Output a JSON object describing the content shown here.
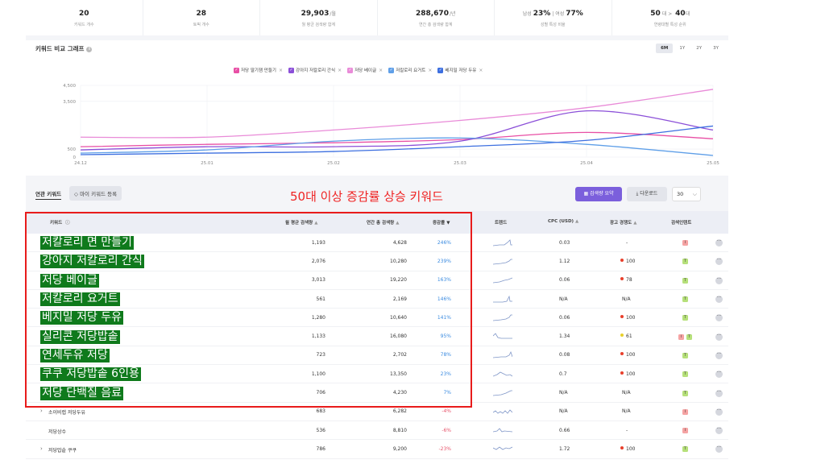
{
  "stats": [
    {
      "value": "20",
      "unit": "",
      "label": "키워드 개수"
    },
    {
      "value": "28",
      "unit": "",
      "label": "토픽 개수"
    },
    {
      "value": "29,903",
      "unit": "/월",
      "label": "월 평균 검색량 합계"
    },
    {
      "value": "288,670",
      "unit": "/년",
      "label": "연간 총 검색량 합계"
    },
    {
      "value_html": {
        "pre": "남성",
        "a": "23%",
        "mid": "| 여성",
        "b": "77%"
      },
      "label": "성별 특성 비율"
    },
    {
      "value_html": {
        "pre": "",
        "a": "50",
        "mid": "대 > ",
        "b": "40",
        "post": "대"
      },
      "label": "연령대별 특성 순위"
    }
  ],
  "chart": {
    "title": "키워드 비교 그래프",
    "periods": [
      "6M",
      "1Y",
      "2Y",
      "3Y"
    ],
    "active_period": "6M",
    "legend": [
      {
        "label": "저당 딸기잼 만들기",
        "color": "#e84fa5"
      },
      {
        "label": "강아지 저칼로리 간식",
        "color": "#8b4fd8"
      },
      {
        "label": "저당 베이글",
        "color": "#e98bd8"
      },
      {
        "label": "저칼로리 요거트",
        "color": "#5f9fe8"
      },
      {
        "label": "베지밀 저당 두유",
        "color": "#3d6fe0"
      }
    ],
    "y_ticks": [
      "4,500",
      "3,500",
      "500",
      "0"
    ],
    "x_ticks": [
      "24.12",
      "25.01",
      "25.02",
      "25.03",
      "25.04",
      "25.05"
    ]
  },
  "chart_data": {
    "type": "line",
    "x": [
      "24.12",
      "25.01",
      "25.02",
      "25.03",
      "25.04",
      "25.05"
    ],
    "ylim": [
      0,
      4500
    ],
    "series": [
      {
        "name": "저당 딸기잼 만들기",
        "color": "#e84fa5",
        "values": [
          650,
          800,
          900,
          1100,
          1550,
          1150
        ]
      },
      {
        "name": "강아지 저칼로리 간식",
        "color": "#8b4fd8",
        "values": [
          450,
          650,
          650,
          1000,
          2900,
          1700
        ]
      },
      {
        "name": "저당 베이글",
        "color": "#e98bd8",
        "values": [
          1250,
          1250,
          1700,
          2300,
          3100,
          4250
        ]
      },
      {
        "name": "저칼로리 요거트",
        "color": "#5f9fe8",
        "values": [
          250,
          450,
          1000,
          1200,
          800,
          100
        ]
      },
      {
        "name": "베지밀 저당 두유",
        "color": "#3d6fe0",
        "values": [
          150,
          250,
          350,
          650,
          1050,
          1950
        ]
      }
    ]
  },
  "toolbar": {
    "tab_label": "연관 키워드",
    "my_keywords": "◇ 마이 키워드 등록",
    "overlay_title": "50대 이상 증감률 상승 키워드",
    "summary": "검색량 요약",
    "download": "다운로드",
    "rows": "30"
  },
  "table": {
    "headers": {
      "keyword": "키워드",
      "monthly": "월 평균 검색량",
      "yearly": "연간 총 검색량",
      "growth": "증감률",
      "trend": "트렌드",
      "cpc": "CPC (USD)",
      "competition": "광고 경쟁도",
      "intent": "검색인텐트"
    },
    "rows": [
      {
        "keyword": "저칼로리 면 만들기",
        "big": true,
        "monthly": "1,193",
        "yearly": "4,628",
        "growth": "246%",
        "dir": "up",
        "cpc": "0.03",
        "comp": "-",
        "comp_dot": "",
        "intent": [
          {
            "t": "I",
            "c": "#f5a3a3"
          }
        ]
      },
      {
        "keyword": "강아지 저칼로리 간식",
        "big": true,
        "monthly": "2,076",
        "yearly": "10,280",
        "growth": "239%",
        "dir": "up",
        "cpc": "1.12",
        "comp": "100",
        "comp_dot": "#e8402c",
        "intent": [
          {
            "t": "T",
            "c": "#b6e07a"
          }
        ]
      },
      {
        "keyword": "저당 베이글",
        "big": true,
        "monthly": "3,013",
        "yearly": "19,220",
        "growth": "163%",
        "dir": "up",
        "cpc": "0.06",
        "comp": "78",
        "comp_dot": "#e8402c",
        "intent": [
          {
            "t": "T",
            "c": "#b6e07a"
          }
        ]
      },
      {
        "keyword": "저칼로리 요거트",
        "big": true,
        "monthly": "561",
        "yearly": "2,169",
        "growth": "146%",
        "dir": "up",
        "cpc": "N/A",
        "comp": "N/A",
        "comp_dot": "",
        "intent": [
          {
            "t": "T",
            "c": "#b6e07a"
          }
        ]
      },
      {
        "keyword": "베지밀 저당 두유",
        "big": true,
        "monthly": "1,280",
        "yearly": "10,640",
        "growth": "141%",
        "dir": "up",
        "cpc": "0.06",
        "comp": "100",
        "comp_dot": "#e8402c",
        "intent": [
          {
            "t": "T",
            "c": "#b6e07a"
          }
        ]
      },
      {
        "keyword": "실리콘 저당밥솥",
        "big": true,
        "monthly": "1,133",
        "yearly": "16,080",
        "growth": "95%",
        "dir": "up",
        "cpc": "1.34",
        "comp": "61",
        "comp_dot": "#e8d02c",
        "intent": [
          {
            "t": "I",
            "c": "#f5a3a3"
          },
          {
            "t": "T",
            "c": "#b6e07a"
          }
        ]
      },
      {
        "keyword": "연세두유 저당",
        "big": true,
        "monthly": "723",
        "yearly": "2,702",
        "growth": "78%",
        "dir": "up",
        "cpc": "0.08",
        "comp": "100",
        "comp_dot": "#e8402c",
        "intent": [
          {
            "t": "T",
            "c": "#b6e07a"
          }
        ]
      },
      {
        "keyword": "쿠쿠 저당밥솥 6인용",
        "big": true,
        "monthly": "1,100",
        "yearly": "13,350",
        "growth": "23%",
        "dir": "up",
        "cpc": "0.7",
        "comp": "100",
        "comp_dot": "#e8402c",
        "intent": [
          {
            "t": "T",
            "c": "#b6e07a"
          }
        ]
      },
      {
        "keyword": "저당 단백질 음료",
        "big": true,
        "monthly": "706",
        "yearly": "4,230",
        "growth": "7%",
        "dir": "up",
        "cpc": "N/A",
        "comp": "N/A",
        "comp_dot": "",
        "intent": [
          {
            "t": "T",
            "c": "#b6e07a"
          }
        ]
      },
      {
        "keyword": "소이비랩 저당두유",
        "big": false,
        "chev": true,
        "monthly": "683",
        "yearly": "6,282",
        "growth": "-4%",
        "dir": "down",
        "cpc": "N/A",
        "comp": "N/A",
        "comp_dot": "",
        "intent": [
          {
            "t": "I",
            "c": "#f5a3a3"
          }
        ]
      },
      {
        "keyword": "저당상수",
        "big": false,
        "chev": false,
        "monthly": "536",
        "yearly": "8,810",
        "growth": "-6%",
        "dir": "down",
        "cpc": "0.66",
        "comp": "-",
        "comp_dot": "",
        "intent": [
          {
            "t": "I",
            "c": "#f5a3a3"
          }
        ]
      },
      {
        "keyword": "저당밥솥 쿠쿠",
        "big": false,
        "chev": true,
        "monthly": "786",
        "yearly": "9,200",
        "growth": "-23%",
        "dir": "down",
        "cpc": "1.72",
        "comp": "100",
        "comp_dot": "#e8402c",
        "intent": [
          {
            "t": "T",
            "c": "#b6e07a"
          }
        ]
      }
    ]
  }
}
